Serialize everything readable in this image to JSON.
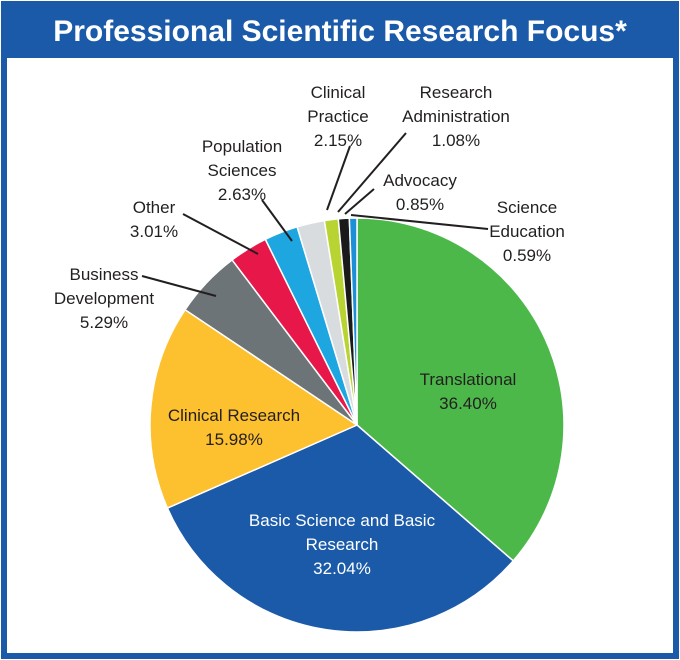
{
  "chart_data": {
    "type": "pie",
    "title": "Professional Scientific Research Focus*",
    "categories": [
      "Translational",
      "Basic Science and Basic Research",
      "Clinical Research",
      "Business Development",
      "Other",
      "Population Sciences",
      "Clinical Practice",
      "Research Administration",
      "Advocacy",
      "Science Education"
    ],
    "values": [
      36.4,
      32.04,
      15.98,
      5.29,
      3.01,
      2.63,
      2.15,
      1.08,
      0.85,
      0.59
    ],
    "value_labels": [
      "36.40%",
      "32.04%",
      "15.98%",
      "5.29%",
      "3.01%",
      "2.63%",
      "2.15%",
      "1.08%",
      "0.85%",
      "0.59%"
    ],
    "colors": [
      "#4cb84a",
      "#1a5aa8",
      "#fdc02f",
      "#6d7478",
      "#e8174a",
      "#1da6e0",
      "#d9dcde",
      "#b8d433",
      "#1a1a1a",
      "#1d8fd6"
    ]
  }
}
